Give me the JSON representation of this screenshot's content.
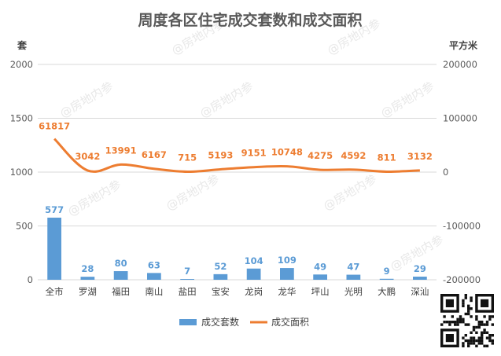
{
  "watermark": "@房地内参",
  "chart_data": {
    "type": "bar+line",
    "title": "周度各区住宅成交套数和成交面积",
    "left_axis_label": "套",
    "right_axis_label": "平方米",
    "left_ylim": [
      0,
      2000
    ],
    "left_ticks": [
      0,
      500,
      1000,
      1500,
      2000
    ],
    "right_ylim": [
      -200000,
      200000
    ],
    "right_ticks": [
      -200000,
      -100000,
      0,
      100000,
      200000
    ],
    "grid": true,
    "legend_position": "bottom",
    "categories": [
      "全市",
      "罗湖",
      "福田",
      "南山",
      "盐田",
      "宝安",
      "龙岗",
      "龙华",
      "坪山",
      "光明",
      "大鹏",
      "深汕"
    ],
    "series": [
      {
        "name": "成交套数",
        "type": "bar",
        "axis": "left",
        "color": "#5B9BD5",
        "values": [
          577,
          28,
          80,
          63,
          7,
          52,
          104,
          109,
          49,
          47,
          9,
          29
        ]
      },
      {
        "name": "成交面积",
        "type": "line",
        "axis": "right",
        "color": "#ED7D31",
        "values": [
          61817,
          3042,
          13991,
          6167,
          715,
          5193,
          9151,
          10748,
          4275,
          4592,
          811,
          3132
        ]
      }
    ]
  }
}
